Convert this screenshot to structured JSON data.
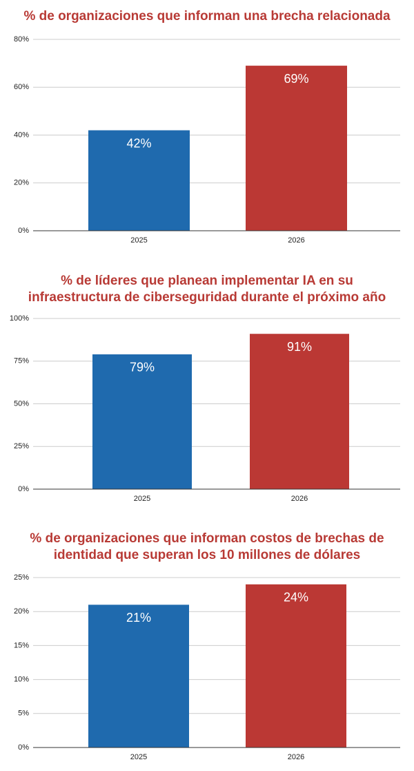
{
  "chart_data": [
    {
      "type": "bar",
      "title": "% de organizaciones que informan una brecha relacionada",
      "categories": [
        "2025",
        "2026"
      ],
      "values": [
        42,
        69
      ],
      "value_labels": [
        "42%",
        "69%"
      ],
      "colors": [
        "#1f6aae",
        "#bb3834"
      ],
      "ylim": [
        0,
        80
      ],
      "yticks": [
        {
          "value": 0,
          "label": "0%"
        },
        {
          "value": 20,
          "label": "20%"
        },
        {
          "value": 40,
          "label": "40%"
        },
        {
          "value": 60,
          "label": "60%"
        },
        {
          "value": 80,
          "label": "80%"
        }
      ],
      "grid": true
    },
    {
      "type": "bar",
      "title": [
        "% de líderes que planean implementar IA en su",
        "infraestructura de ciberseguridad durante el próximo año"
      ],
      "categories": [
        "2025",
        "2026"
      ],
      "values": [
        79,
        91
      ],
      "value_labels": [
        "79%",
        "91%"
      ],
      "colors": [
        "#1f6aae",
        "#bb3834"
      ],
      "ylim": [
        0,
        100
      ],
      "yticks": [
        {
          "value": 0,
          "label": "0%"
        },
        {
          "value": 25,
          "label": "25%"
        },
        {
          "value": 50,
          "label": "50%"
        },
        {
          "value": 75,
          "label": "75%"
        },
        {
          "value": 100,
          "label": "100%"
        }
      ],
      "grid": true
    },
    {
      "type": "bar",
      "title": [
        "% de organizaciones que informan costos de brechas de",
        "identidad que superan los 10 millones de dólares"
      ],
      "categories": [
        "2025",
        "2026"
      ],
      "values": [
        21,
        24
      ],
      "value_labels": [
        "21%",
        "24%"
      ],
      "colors": [
        "#1f6aae",
        "#bb3834"
      ],
      "ylim": [
        0,
        25
      ],
      "yticks": [
        {
          "value": 0,
          "label": "0%"
        },
        {
          "value": 5,
          "label": "5%"
        },
        {
          "value": 10,
          "label": "10%"
        },
        {
          "value": 15,
          "label": "15%"
        },
        {
          "value": 20,
          "label": "20%"
        },
        {
          "value": 25,
          "label": "25%"
        }
      ],
      "grid": true
    }
  ]
}
